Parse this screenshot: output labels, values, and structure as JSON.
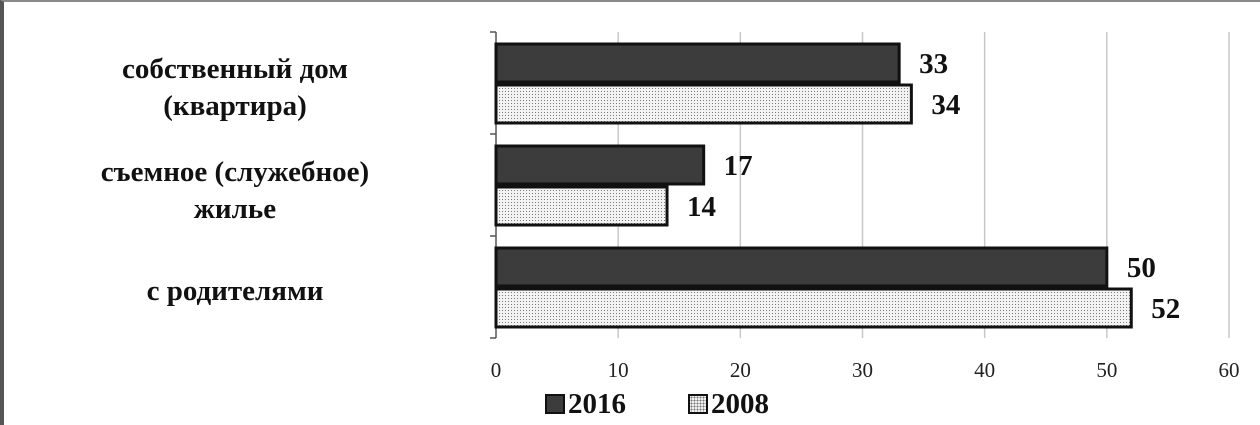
{
  "chart_data": {
    "type": "bar",
    "orientation": "horizontal",
    "categories": [
      [
        "собственный дом",
        "(квартира)"
      ],
      [
        "съемное (служебное)",
        "жилье"
      ],
      [
        "с родителями"
      ]
    ],
    "series": [
      {
        "name": "2016",
        "values": [
          33,
          17,
          50
        ],
        "fill": "#3c3c3c",
        "pattern": "solid"
      },
      {
        "name": "2008",
        "values": [
          34,
          14,
          52
        ],
        "fill": "#f3f3f3",
        "pattern": "dots"
      }
    ],
    "xlim": [
      0,
      60
    ],
    "xticks": [
      0,
      10,
      20,
      30,
      40,
      50,
      60
    ],
    "grid": "vertical",
    "legend": "bottom",
    "data_labels": true
  }
}
